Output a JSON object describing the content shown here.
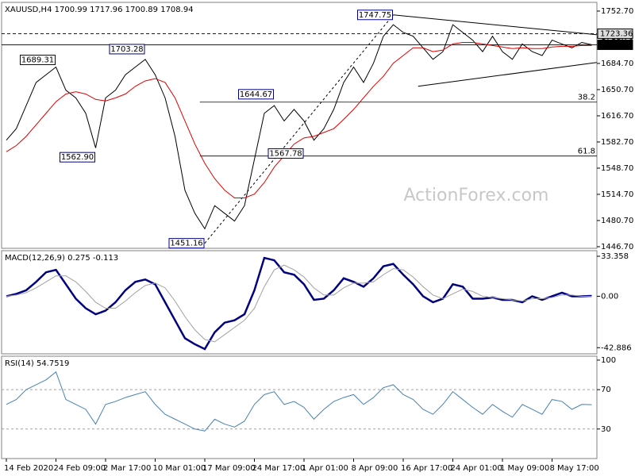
{
  "chart_data": [
    {
      "type": "line",
      "title": "XAUUSD,H4  1700.99 1717.96 1700.89 1708.94",
      "series": [
        {
          "color": "#000000",
          "values": [
            1585,
            1600,
            1630,
            1660,
            1670,
            1680,
            1650,
            1640,
            1620,
            1575,
            1640,
            1650,
            1670,
            1680,
            1690,
            1670,
            1640,
            1590,
            1520,
            1490,
            1470,
            1500,
            1490,
            1480,
            1500,
            1560,
            1620,
            1630,
            1610,
            1625,
            1610,
            1585,
            1600,
            1625,
            1660,
            1680,
            1660,
            1685,
            1720,
            1735,
            1725,
            1720,
            1705,
            1690,
            1700,
            1735,
            1725,
            1715,
            1700,
            1720,
            1700,
            1690,
            1710,
            1700,
            1695,
            1715,
            1710,
            1705,
            1712,
            1709
          ]
        },
        {
          "color": "#e00000",
          "values": [
            1570,
            1578,
            1590,
            1605,
            1620,
            1635,
            1645,
            1648,
            1645,
            1638,
            1636,
            1640,
            1645,
            1655,
            1662,
            1665,
            1660,
            1640,
            1610,
            1580,
            1555,
            1535,
            1520,
            1510,
            1510,
            1515,
            1530,
            1550,
            1565,
            1580,
            1588,
            1590,
            1595,
            1600,
            1612,
            1625,
            1640,
            1655,
            1668,
            1685,
            1695,
            1705,
            1705,
            1700,
            1702,
            1710,
            1712,
            1712,
            1710,
            1708,
            1706,
            1704,
            1705,
            1704,
            1704,
            1706,
            1707,
            1707,
            1708,
            1708
          ]
        }
      ],
      "ylim": [
        1444.6,
        1764
      ],
      "yticks": [
        {
          "value": 1446.7,
          "label": "1446.70"
        },
        {
          "value": 1480.7,
          "label": "1480.70"
        },
        {
          "value": 1514.7,
          "label": "1514.70"
        },
        {
          "value": 1548.7,
          "label": "1548.70"
        },
        {
          "value": 1582.7,
          "label": "1582.70"
        },
        {
          "value": 1616.7,
          "label": "1616.70"
        },
        {
          "value": 1650.7,
          "label": "1650.70"
        },
        {
          "value": 1684.7,
          "label": "1684.70"
        },
        {
          "value": 1718.7,
          "label": "1718.70"
        },
        {
          "value": 1752.7,
          "label": "1752.70"
        }
      ],
      "annotations": [
        {
          "x": 5,
          "value": 1689.31,
          "label": "1689.31"
        },
        {
          "x": 14,
          "value": 1703.28,
          "label": "1703.28"
        },
        {
          "x": 9,
          "value": 1562.9,
          "label": "1562.90"
        },
        {
          "x": 27,
          "value": 1644.67,
          "label": "1644.67"
        },
        {
          "x": 30,
          "value": 1567.78,
          "label": "1567.78"
        },
        {
          "x": 20,
          "value": 1451.16,
          "label": "1451.16"
        },
        {
          "x": 39,
          "value": 1747.75,
          "label": "1747.75"
        }
      ],
      "fib_levels": [
        {
          "level": 38.2,
          "value": 1634.45,
          "x_start": 19.5
        },
        {
          "level": 61.8,
          "value": 1564.46,
          "x_start": 19.5
        }
      ],
      "trendlines": [
        {
          "x": [
            20,
            39
          ],
          "y": [
            1451.16,
            1747.75
          ],
          "dashed": true
        },
        {
          "x": [
            39,
            59.5
          ],
          "y": [
            1747.75,
            1722
          ]
        },
        {
          "x": [
            41.5,
            59.5
          ],
          "y": [
            1655,
            1686
          ]
        }
      ],
      "price_lines": [
        {
          "value": 1723.36,
          "dashed": true
        },
        {
          "value": 1708.94
        }
      ],
      "watermark": "ActionForex.com"
    },
    {
      "type": "line",
      "title": "MACD(12,26,9) 0.275 -0.113",
      "series": [
        {
          "color": "#00007f",
          "width": 2.5,
          "values": [
            0,
            2,
            5,
            12,
            20,
            22,
            10,
            -2,
            -10,
            -15,
            -12,
            -5,
            5,
            12,
            14,
            10,
            -5,
            -20,
            -35,
            -40,
            -44,
            -30,
            -22,
            -20,
            -15,
            5,
            32,
            30,
            20,
            18,
            10,
            -3,
            -2,
            5,
            15,
            12,
            8,
            15,
            25,
            27,
            18,
            10,
            0,
            -5,
            -2,
            10,
            8,
            -2,
            -2,
            -1,
            -3,
            -3,
            -5,
            0,
            -3,
            0,
            3,
            0,
            0,
            0.275
          ]
        },
        {
          "color": "#a0a0a0",
          "width": 1,
          "values": [
            0,
            1,
            3,
            7,
            12,
            17,
            17,
            12,
            4,
            -5,
            -10,
            -10,
            -4,
            3,
            9,
            11,
            7,
            -4,
            -17,
            -28,
            -36,
            -38,
            -32,
            -26,
            -20,
            -10,
            8,
            22,
            26,
            22,
            16,
            7,
            1,
            1,
            7,
            11,
            11,
            12,
            18,
            23,
            22,
            16,
            8,
            1,
            -2,
            2,
            6,
            4,
            0,
            -1,
            -2,
            -3,
            -4,
            -2,
            -2,
            -1,
            1,
            1,
            0,
            -0.113
          ]
        }
      ],
      "ylim": [
        -48,
        38
      ],
      "yticks": [
        {
          "value": 33.358,
          "label": "33.358"
        },
        {
          "value": 0,
          "label": "0.00"
        },
        {
          "value": -42.886,
          "label": "-42.886"
        }
      ]
    },
    {
      "type": "line",
      "title": "RSI(14) 54.7519",
      "series": [
        {
          "color": "#4682b4",
          "width": 1,
          "values": [
            55,
            60,
            70,
            75,
            80,
            88,
            60,
            55,
            50,
            35,
            55,
            58,
            62,
            65,
            68,
            55,
            45,
            40,
            35,
            30,
            28,
            40,
            35,
            32,
            38,
            55,
            65,
            68,
            55,
            58,
            52,
            40,
            50,
            58,
            62,
            65,
            55,
            62,
            72,
            75,
            65,
            60,
            50,
            45,
            55,
            68,
            60,
            52,
            45,
            55,
            48,
            42,
            55,
            50,
            45,
            60,
            58,
            50,
            55,
            54.7519
          ]
        }
      ],
      "ylim": [
        0,
        104
      ],
      "yticks": [
        100,
        70,
        30
      ],
      "levels": [
        70,
        30
      ],
      "categories": [
        "14 Feb 2020",
        null,
        null,
        null,
        null,
        "24 Feb 09:00",
        null,
        null,
        null,
        null,
        "2 Mar 17:00",
        null,
        null,
        null,
        null,
        "10 Mar 01:00",
        null,
        null,
        null,
        null,
        "17 Mar 09:00",
        null,
        null,
        null,
        null,
        "24 Mar 17:00",
        null,
        null,
        null,
        null,
        "1 Apr 01:00",
        null,
        null,
        null,
        null,
        "8 Apr 09:00",
        null,
        null,
        null,
        null,
        "16 Apr 17:00",
        null,
        null,
        null,
        null,
        "24 Apr 01:00",
        null,
        null,
        null,
        null,
        "1 May 09:00",
        null,
        null,
        null,
        null,
        "8 May 17:00",
        null,
        null,
        null,
        null
      ]
    }
  ]
}
